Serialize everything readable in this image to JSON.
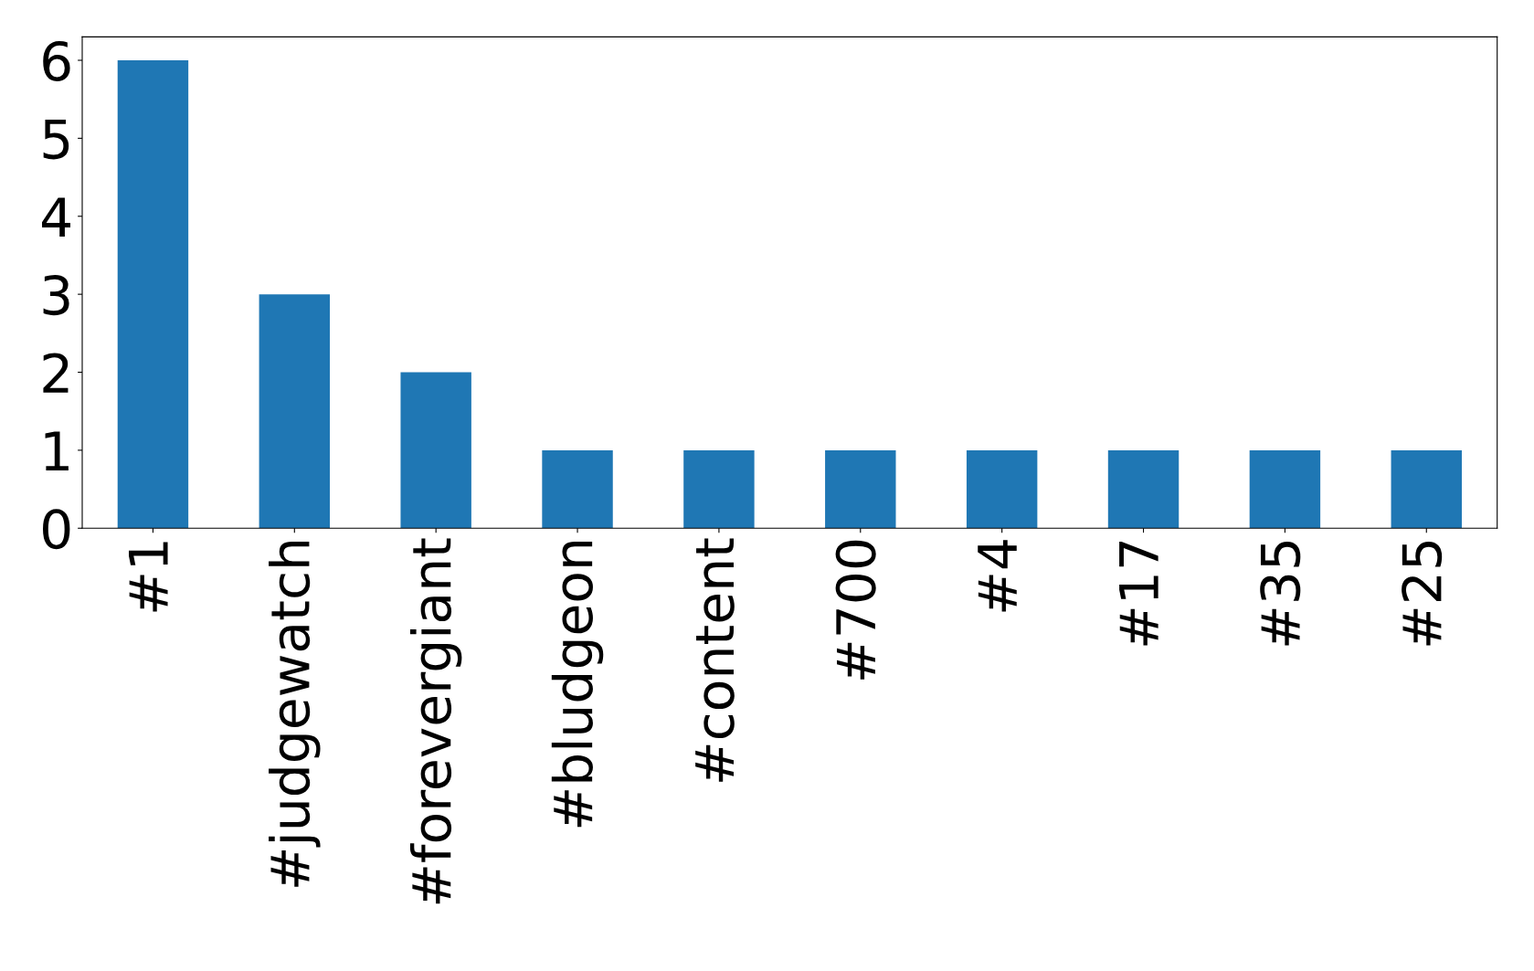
{
  "chart_data": {
    "type": "bar",
    "categories": [
      "#1",
      "#judgewatch",
      "#forevergiant",
      "#bludgeon",
      "#content",
      "#700",
      "#4",
      "#17",
      "#35",
      "#25"
    ],
    "values": [
      6,
      3,
      2,
      1,
      1,
      1,
      1,
      1,
      1,
      1
    ],
    "color": "#1f77b4",
    "ylim": [
      0,
      6.3
    ],
    "yticks": [
      0,
      1,
      2,
      3,
      4,
      5,
      6
    ],
    "grid": false,
    "legend": false
  }
}
